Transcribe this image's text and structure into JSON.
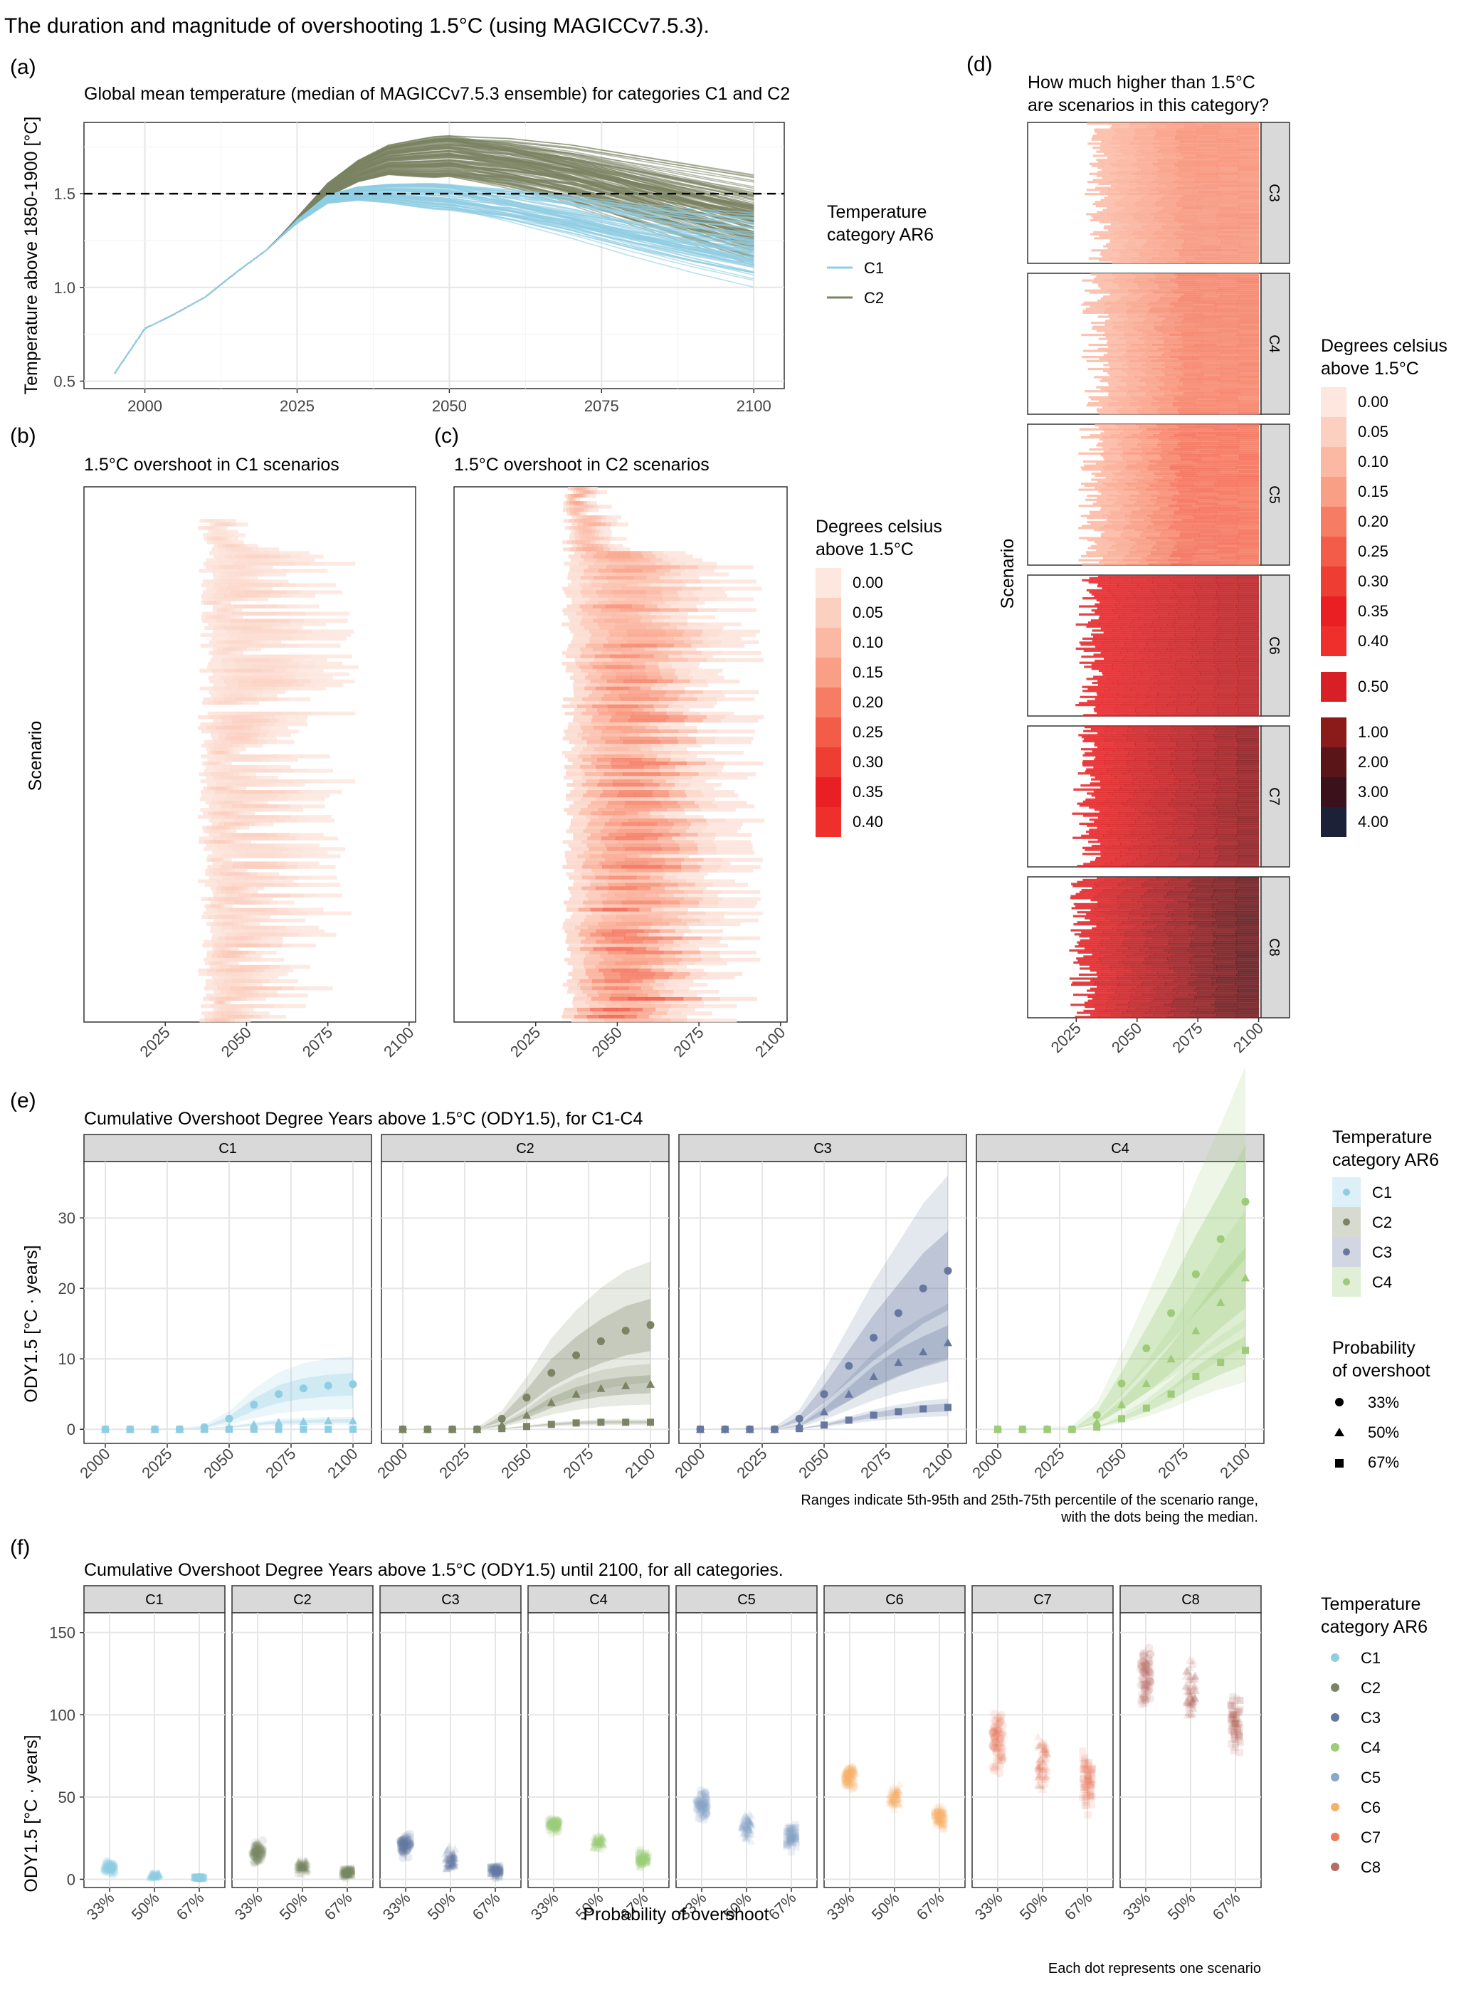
{
  "figure_title": "The duration and magnitude of overshooting 1.5°C (using MAGICCv7.5.3).",
  "colors": {
    "C1": "#8fcde3",
    "C2": "#7a8463",
    "C3": "#6678a0",
    "C4": "#9dcb78",
    "C5": "#8aa6c8",
    "C6": "#f5b26b",
    "C7": "#ec7b5f",
    "C8": "#b66d61"
  },
  "chart_data": [
    {
      "id": "a",
      "tag": "(a)",
      "type": "line",
      "title": "Global mean temperature (median of MAGICCv7.5.3 ensemble) for categories C1 and C2",
      "xlabel": "",
      "ylabel": "Temperature above 1850-1900 [°C]",
      "x_ticks": [
        2000,
        2025,
        2050,
        2075,
        2100
      ],
      "y_ticks": [
        0.5,
        1.0,
        1.5
      ],
      "y_tick_labels": [
        "0.5",
        "1.0",
        "1.5"
      ],
      "xlim": [
        1990,
        2105
      ],
      "ylim": [
        0.46,
        1.88
      ],
      "reference_line": 1.5,
      "legend_title": "Temperature\ncategory AR6",
      "series": [
        {
          "name": "C1",
          "x": [
            1995,
            2000,
            2005,
            2010,
            2015,
            2020,
            2025,
            2030,
            2035,
            2040,
            2050,
            2060,
            2070,
            2080,
            2090,
            2100
          ],
          "values": [
            0.54,
            0.78,
            0.86,
            0.95,
            1.08,
            1.2,
            1.35,
            1.47,
            1.5,
            1.5,
            1.48,
            1.43,
            1.37,
            1.3,
            1.24,
            1.19
          ]
        },
        {
          "name": "C2",
          "x": [
            1995,
            2000,
            2005,
            2010,
            2015,
            2020,
            2025,
            2030,
            2035,
            2040,
            2050,
            2060,
            2070,
            2080,
            2090,
            2100
          ],
          "values": [
            0.54,
            0.78,
            0.86,
            0.95,
            1.08,
            1.2,
            1.36,
            1.52,
            1.62,
            1.68,
            1.7,
            1.66,
            1.6,
            1.52,
            1.44,
            1.36
          ]
        }
      ]
    },
    {
      "id": "b",
      "tag": "(b)",
      "type": "heatmap",
      "title": "1.5°C overshoot in C1 scenarios",
      "ylabel": "Scenario",
      "x_ticks": [
        2025,
        2050,
        2075,
        2100
      ],
      "xlim": [
        2000,
        2102
      ],
      "overshoot_start_range": [
        2035,
        2040
      ],
      "overshoot_end_range": [
        2045,
        2085
      ],
      "max_value": 0.1
    },
    {
      "id": "c",
      "tag": "(c)",
      "type": "heatmap",
      "title": "1.5°C overshoot in C2 scenarios",
      "x_ticks": [
        2025,
        2050,
        2075,
        2100
      ],
      "xlim": [
        2000,
        2102
      ],
      "overshoot_start_range": [
        2033,
        2037
      ],
      "overshoot_end_range": [
        2070,
        2095
      ],
      "max_value": 0.32
    },
    {
      "id": "bc_legend",
      "type": "legend",
      "title": "Degrees celsius\nabove 1.5°C",
      "labels": [
        "0.00",
        "0.05",
        "0.10",
        "0.15",
        "0.20",
        "0.25",
        "0.30",
        "0.35",
        "0.40"
      ],
      "colors": [
        "#fde7df",
        "#fcd0c1",
        "#fbb8a3",
        "#f99f85",
        "#f67d63",
        "#f25c48",
        "#ee3d32",
        "#ea1f23",
        "#ef2f2c"
      ]
    },
    {
      "id": "d",
      "tag": "(d)",
      "type": "heatmap",
      "title": "How much higher than 1.5°C\nare scenarios in this category?",
      "ylabel": "Scenario",
      "x_ticks": [
        2025,
        2050,
        2075,
        2100
      ],
      "xlim": [
        2005,
        2101
      ],
      "facets": [
        "C3",
        "C4",
        "C5",
        "C6",
        "C7",
        "C8"
      ],
      "legend_title": "Degrees celsius\nabove 1.5°C",
      "legend_labels": [
        "0.00",
        "0.05",
        "0.10",
        "0.15",
        "0.20",
        "0.25",
        "0.30",
        "0.35",
        "0.40",
        "0.50",
        "1.00",
        "2.00",
        "3.00",
        "4.00"
      ],
      "legend_colors": [
        "#fde7df",
        "#fcd0c1",
        "#fbb8a3",
        "#f99f85",
        "#f67d63",
        "#f25c48",
        "#ee3d32",
        "#ea1f23",
        "#ef2f2c",
        "#d81f26",
        "#8b1a1a",
        "#5a1518",
        "#3b121c",
        "#1c2138"
      ]
    },
    {
      "id": "e",
      "tag": "(e)",
      "type": "line",
      "title": "Cumulative Overshoot Degree Years above 1.5°C (ODY1.5), for C1-C4",
      "ylabel": "ODY1.5 [°C · years]",
      "x": [
        2000,
        2010,
        2020,
        2030,
        2040,
        2050,
        2060,
        2070,
        2080,
        2090,
        2100
      ],
      "x_ticks": [
        2000,
        2025,
        2050,
        2075,
        2100
      ],
      "y_ticks": [
        0,
        10,
        20,
        30
      ],
      "ylim": [
        -2,
        38
      ],
      "legend_title": "Temperature\ncategory AR6",
      "shape_legend_title": "Probability\nof overshoot",
      "probabilities": [
        "33%",
        "50%",
        "67%"
      ],
      "note": "Ranges indicate 5th-95th and 25th-75th percentile of the scenario range,\nwith the dots being the median.",
      "series": [
        {
          "name": "C1",
          "p33": [
            0,
            0,
            0,
            0,
            0.3,
            1.5,
            3.5,
            5,
            5.8,
            6.2,
            6.4
          ],
          "p50": [
            0,
            0,
            0,
            0,
            0.1,
            0.3,
            0.7,
            1,
            1.1,
            1.2,
            1.2
          ],
          "p67": [
            0,
            0,
            0,
            0,
            0,
            0,
            0,
            0,
            0,
            0,
            0
          ],
          "hi": 12
        },
        {
          "name": "C2",
          "p33": [
            0,
            0,
            0,
            0,
            1.5,
            4.5,
            8,
            10.5,
            12.5,
            14,
            14.8
          ],
          "p50": [
            0,
            0,
            0,
            0,
            0.6,
            2,
            3.8,
            5,
            5.8,
            6.2,
            6.4
          ],
          "p67": [
            0,
            0,
            0,
            0,
            0.1,
            0.4,
            0.7,
            0.9,
            1,
            1,
            1
          ],
          "hi": 22
        },
        {
          "name": "C3",
          "p33": [
            0,
            0,
            0,
            0,
            1.5,
            5,
            9,
            13,
            16.5,
            20,
            22.5
          ],
          "p50": [
            0,
            0,
            0,
            0,
            0.5,
            2.5,
            5,
            7.5,
            9.5,
            11,
            12.3
          ],
          "p67": [
            0,
            0,
            0,
            0,
            0.1,
            0.6,
            1.3,
            2,
            2.5,
            2.9,
            3.1
          ],
          "hi": 29
        },
        {
          "name": "C4",
          "p33": [
            0,
            0,
            0,
            0,
            2,
            6.5,
            11.5,
            16.5,
            22,
            27,
            32.3
          ],
          "p50": [
            0,
            0,
            0,
            0,
            1,
            3.5,
            6.5,
            10,
            14,
            18,
            21.5
          ],
          "p67": [
            0,
            0,
            0,
            0,
            0.3,
            1.5,
            3,
            5,
            7.5,
            9.5,
            11.2
          ],
          "hi": 37
        }
      ]
    },
    {
      "id": "f",
      "tag": "(f)",
      "type": "scatter",
      "title": "Cumulative Overshoot Degree Years above 1.5°C (ODY1.5) until 2100, for all categories.",
      "ylabel": "ODY1.5 [°C · years]",
      "xlabel": "Probability of overshoot",
      "categories": [
        "33%",
        "50%",
        "67%"
      ],
      "y_ticks": [
        0,
        50,
        100,
        150
      ],
      "ylim": [
        -5,
        162
      ],
      "legend_title": "Temperature\ncategory AR6",
      "note": "Each dot represents one scenario",
      "series": [
        {
          "name": "C1",
          "p33": [
            2,
            12
          ],
          "p50": [
            0,
            5
          ],
          "p67": [
            0,
            2
          ]
        },
        {
          "name": "C2",
          "p33": [
            8,
            25
          ],
          "p50": [
            2,
            14
          ],
          "p67": [
            0,
            8
          ]
        },
        {
          "name": "C3",
          "p33": [
            12,
            30
          ],
          "p50": [
            3,
            21
          ],
          "p67": [
            0,
            10
          ]
        },
        {
          "name": "C4",
          "p33": [
            27,
            39
          ],
          "p50": [
            17,
            29
          ],
          "p67": [
            6,
            19
          ]
        },
        {
          "name": "C5",
          "p33": [
            33,
            57
          ],
          "p50": [
            21,
            44
          ],
          "p67": [
            15,
            35
          ]
        },
        {
          "name": "C6",
          "p33": [
            52,
            72
          ],
          "p50": [
            41,
            60
          ],
          "p67": [
            28,
            47
          ]
        },
        {
          "name": "C7",
          "p33": [
            62,
            108
          ],
          "p50": [
            48,
            95
          ],
          "p67": [
            38,
            82
          ]
        },
        {
          "name": "C8",
          "p33": [
            100,
            150
          ],
          "p50": [
            85,
            140
          ],
          "p67": [
            70,
            118
          ]
        }
      ]
    }
  ]
}
